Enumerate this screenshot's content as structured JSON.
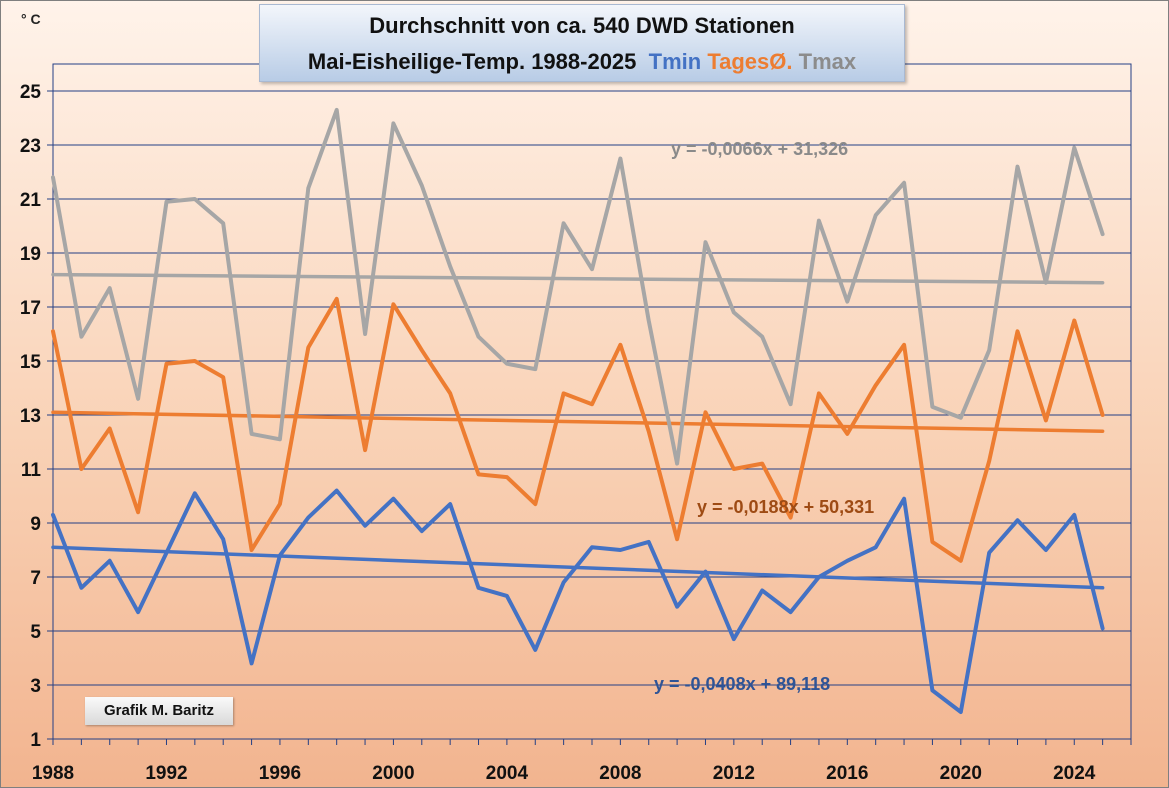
{
  "chart_data": {
    "type": "line",
    "title_line1": "Durchschnitt von ca. 540 DWD Stationen",
    "title_line2": "Mai-Eisheilige-Temp. 1988-2025",
    "unit_label": "° C",
    "credit": "Grafik M. Baritz",
    "xlim": [
      1988,
      2026
    ],
    "ylim": [
      1,
      26
    ],
    "x_ticks": [
      1988,
      1992,
      1996,
      2000,
      2004,
      2008,
      2012,
      2016,
      2020,
      2024
    ],
    "y_ticks": [
      1,
      3,
      5,
      7,
      9,
      11,
      13,
      15,
      17,
      19,
      21,
      23,
      25
    ],
    "grid": "horizontal",
    "x": [
      1988,
      1989,
      1990,
      1991,
      1992,
      1993,
      1994,
      1995,
      1996,
      1997,
      1998,
      1999,
      2000,
      2001,
      2002,
      2003,
      2004,
      2005,
      2006,
      2007,
      2008,
      2009,
      2010,
      2011,
      2012,
      2013,
      2014,
      2015,
      2016,
      2017,
      2018,
      2019,
      2020,
      2021,
      2022,
      2023,
      2024,
      2025
    ],
    "series": [
      {
        "name": "Tmax",
        "color": "#a6a6a6",
        "values": [
          21.8,
          15.9,
          17.7,
          13.6,
          20.9,
          21.0,
          20.1,
          12.3,
          12.1,
          21.4,
          24.3,
          16.0,
          23.8,
          21.5,
          18.5,
          15.9,
          14.9,
          14.7,
          20.1,
          18.4,
          22.5,
          16.5,
          11.2,
          19.4,
          16.8,
          15.9,
          13.4,
          20.2,
          17.2,
          20.4,
          21.6,
          13.3,
          12.9,
          15.4,
          22.2,
          17.9,
          22.9,
          19.7
        ],
        "trend": {
          "start": 18.2,
          "end": 17.9,
          "equation": "y = -0,0066x + 31,326",
          "color": "#8a8a8a"
        }
      },
      {
        "name": "TagesØ",
        "color": "#ed7d31",
        "values": [
          16.1,
          11.0,
          12.5,
          9.4,
          14.9,
          15.0,
          14.4,
          8.0,
          9.7,
          15.5,
          17.3,
          11.7,
          17.1,
          15.4,
          13.8,
          10.8,
          10.7,
          9.7,
          13.8,
          13.4,
          15.6,
          12.4,
          8.4,
          13.1,
          11.0,
          11.2,
          9.2,
          13.8,
          12.3,
          14.1,
          15.6,
          8.3,
          7.6,
          11.3,
          16.1,
          12.8,
          16.5,
          13.0
        ],
        "trend": {
          "start": 13.1,
          "end": 12.4,
          "equation": "y = -0,0188x + 50,331",
          "color": "#9e4b14"
        }
      },
      {
        "name": "Tmin",
        "color": "#4472c4",
        "values": [
          9.3,
          6.6,
          7.6,
          5.7,
          7.9,
          10.1,
          8.4,
          3.8,
          7.8,
          9.2,
          10.2,
          8.9,
          9.9,
          8.7,
          9.7,
          6.6,
          6.3,
          4.3,
          6.8,
          8.1,
          8.0,
          8.3,
          5.9,
          7.2,
          4.7,
          6.5,
          5.7,
          7.0,
          7.6,
          8.1,
          9.9,
          2.8,
          2.0,
          7.9,
          9.1,
          8.0,
          9.3,
          5.1
        ],
        "trend": {
          "start": 8.1,
          "end": 6.6,
          "equation": "y = -0,0408x + 89,118",
          "color": "#2f5496"
        }
      }
    ]
  }
}
